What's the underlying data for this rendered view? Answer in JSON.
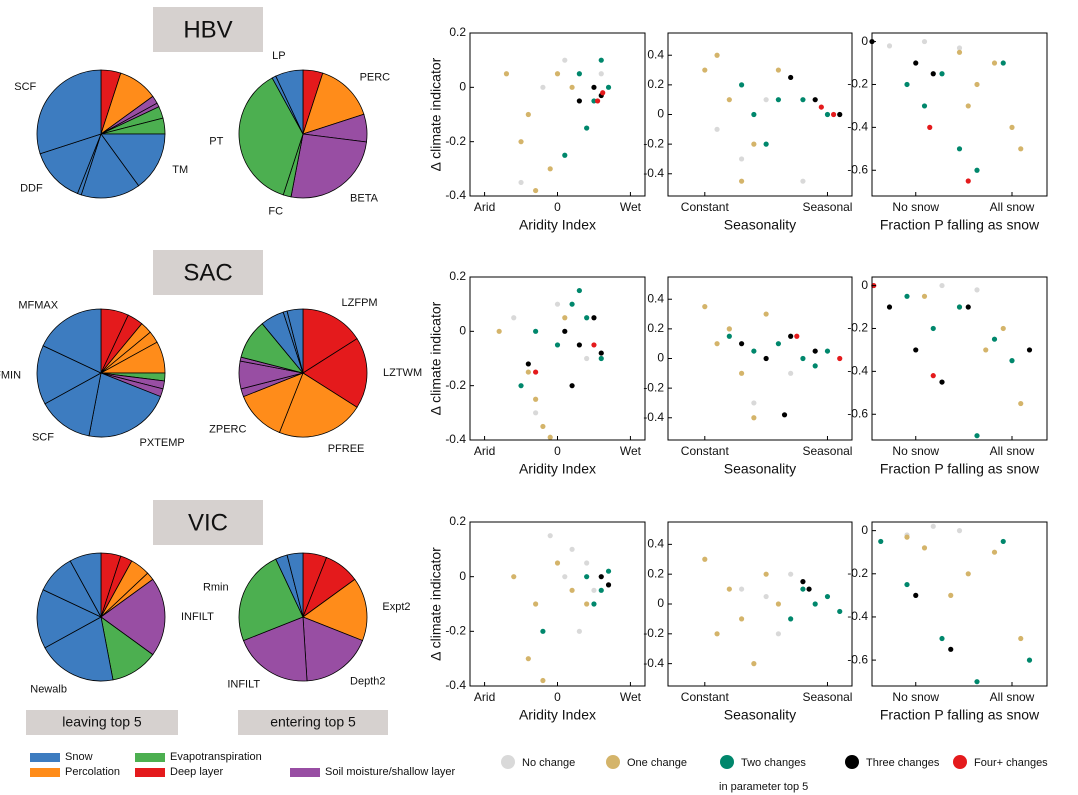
{
  "model_labels": [
    "HBV",
    "SAC",
    "VIC"
  ],
  "pie_captions": [
    "leaving top 5",
    "entering top 5"
  ],
  "pie_legend": [
    {
      "name": "Snow",
      "color": "#3d7cc0"
    },
    {
      "name": "Percolation",
      "color": "#ff8c1a"
    },
    {
      "name": "Evapotranspiration",
      "color": "#4caf50"
    },
    {
      "name": "Deep layer",
      "color": "#e41a1c"
    },
    {
      "name": "Soil moisture/shallow layer",
      "color": "#984ea3"
    }
  ],
  "scatter_legend": {
    "items": [
      {
        "name": "No change",
        "color": "#d9d9d9"
      },
      {
        "name": "One change",
        "color": "#d4b46a"
      },
      {
        "name": "Two changes",
        "color": "#00876c"
      },
      {
        "name": "Three changes",
        "color": "#000000"
      },
      {
        "name": "Four+ changes",
        "color": "#e41a1c"
      }
    ],
    "note": "in parameter top 5"
  },
  "chart_data": [
    {
      "type": "pie",
      "categories": [
        null,
        null,
        null,
        null,
        null,
        null,
        "TM",
        null,
        null,
        "DDF",
        "SCF"
      ],
      "values": [
        5,
        10,
        2,
        1,
        3,
        4,
        15,
        15,
        1,
        14,
        30
      ],
      "colors": [
        "#e41a1c",
        "#ff8c1a",
        "#984ea3",
        "#984ea3",
        "#4caf50",
        "#4caf50",
        "#3d7cc0",
        "#3d7cc0",
        "#3d7cc0",
        "#3d7cc0",
        "#3d7cc0"
      ]
    },
    {
      "type": "pie",
      "categories": [
        null,
        "PERC",
        null,
        "BETA",
        "FC",
        "PT",
        null,
        "LP"
      ],
      "values": [
        5,
        15,
        7,
        26,
        2,
        37,
        1,
        7
      ],
      "colors": [
        "#e41a1c",
        "#ff8c1a",
        "#984ea3",
        "#984ea3",
        "#4caf50",
        "#4caf50",
        "#3d7cc0",
        "#3d7cc0"
      ]
    },
    {
      "type": "scatter",
      "x_label": "Aridity Index",
      "y_label": "Δ climate indicator",
      "xlim": [
        -1.2,
        1.2
      ],
      "ylim": [
        -0.4,
        0.2
      ],
      "xticks": [
        {
          "value": -1,
          "label": "Arid"
        },
        0,
        {
          "value": 1,
          "label": "Wet"
        }
      ],
      "yticks": [
        -0.4,
        -0.2,
        0,
        0.2
      ],
      "series": [
        {
          "x": [
            -0.2,
            0.1,
            0.3,
            0.6,
            -0.5
          ],
          "y": [
            0.0,
            0.1,
            -0.05,
            0.05,
            -0.35
          ]
        },
        {
          "x": [
            -0.7,
            -0.4,
            -0.1,
            0.2,
            -0.3,
            -0.5,
            0.0
          ],
          "y": [
            0.05,
            -0.1,
            -0.3,
            0.0,
            -0.38,
            -0.2,
            0.05
          ]
        },
        {
          "x": [
            0.3,
            0.5,
            0.7,
            0.6,
            0.4,
            0.1
          ],
          "y": [
            0.05,
            -0.05,
            0.0,
            0.1,
            -0.15,
            -0.25
          ]
        },
        {
          "x": [
            0.3,
            0.5,
            0.6
          ],
          "y": [
            -0.05,
            0.0,
            -0.03
          ]
        },
        {
          "x": [
            0.55,
            0.62
          ],
          "y": [
            -0.05,
            -0.02
          ]
        }
      ]
    },
    {
      "type": "scatter",
      "x_label": "Seasonality",
      "xlim": [
        -0.3,
        1.2
      ],
      "ylim": [
        -0.55,
        0.55
      ],
      "xticks": [
        {
          "value": 0,
          "label": "Constant"
        },
        {
          "value": 1,
          "label": "Seasonal"
        }
      ],
      "yticks": [
        -0.4,
        -0.2,
        0,
        0.2,
        0.4
      ],
      "series": [
        {
          "x": [
            0.1,
            0.3,
            0.5,
            0.8
          ],
          "y": [
            -0.1,
            -0.3,
            0.1,
            -0.45
          ]
        },
        {
          "x": [
            0.0,
            0.2,
            0.4,
            0.3,
            0.6,
            0.1
          ],
          "y": [
            0.3,
            0.1,
            -0.2,
            -0.45,
            0.3,
            0.4
          ]
        },
        {
          "x": [
            0.3,
            0.4,
            0.6,
            0.8,
            1.0,
            0.5
          ],
          "y": [
            0.2,
            0.0,
            0.1,
            0.1,
            0.0,
            -0.2
          ]
        },
        {
          "x": [
            0.7,
            0.9,
            1.1
          ],
          "y": [
            0.25,
            0.1,
            0.0
          ]
        },
        {
          "x": [
            0.95,
            1.05
          ],
          "y": [
            0.05,
            0.0
          ]
        }
      ]
    },
    {
      "type": "scatter",
      "x_label": "Fraction P falling as snow",
      "xlim": [
        0,
        1
      ],
      "ylim": [
        -0.72,
        0.04
      ],
      "xticks": [
        {
          "value": 0.25,
          "label": "No snow"
        },
        {
          "value": 0.8,
          "label": "All snow"
        }
      ],
      "yticks": [
        -0.6,
        -0.4,
        -0.2,
        0
      ],
      "series": [
        {
          "x": [
            0.1,
            0.3,
            0.5
          ],
          "y": [
            -0.02,
            0,
            -0.03
          ]
        },
        {
          "x": [
            0.5,
            0.6,
            0.7,
            0.8,
            0.55,
            0.85
          ],
          "y": [
            -0.05,
            -0.2,
            -0.1,
            -0.4,
            -0.3,
            -0.5
          ]
        },
        {
          "x": [
            0.2,
            0.3,
            0.5,
            0.6,
            0.75,
            0.4
          ],
          "y": [
            -0.2,
            -0.3,
            -0.5,
            -0.6,
            -0.1,
            -0.15
          ]
        },
        {
          "x": [
            0,
            0.25,
            0.35
          ],
          "y": [
            0,
            -0.1,
            -0.15
          ]
        },
        {
          "x": [
            0.33,
            0.55
          ],
          "y": [
            -0.4,
            -0.65
          ]
        }
      ]
    },
    {
      "type": "pie",
      "categories": [
        null,
        null,
        null,
        null,
        null,
        null,
        null,
        null,
        "PXTEMP",
        "SCF",
        "MFMIN",
        "MFMAX"
      ],
      "values": [
        7,
        4,
        3,
        3,
        8,
        2,
        2,
        2,
        22,
        14,
        15,
        18
      ],
      "colors": [
        "#e41a1c",
        "#e41a1c",
        "#ff8c1a",
        "#ff8c1a",
        "#ff8c1a",
        "#4caf50",
        "#984ea3",
        "#984ea3",
        "#3d7cc0",
        "#3d7cc0",
        "#3d7cc0",
        "#3d7cc0"
      ]
    },
    {
      "type": "pie",
      "categories": [
        "LZFPM",
        "LZTWM",
        "PFREE",
        "ZPERC",
        null,
        null,
        null,
        null,
        null,
        null,
        null
      ],
      "values": [
        16,
        18,
        22,
        13,
        2,
        7,
        1,
        10,
        6,
        1,
        4
      ],
      "colors": [
        "#e41a1c",
        "#e41a1c",
        "#ff8c1a",
        "#ff8c1a",
        "#984ea3",
        "#984ea3",
        "#984ea3",
        "#4caf50",
        "#3d7cc0",
        "#3d7cc0",
        "#3d7cc0"
      ]
    },
    {
      "type": "scatter",
      "x_label": "Aridity Index",
      "y_label": "Δ climate indicator",
      "xlim": [
        -1.2,
        1.2
      ],
      "ylim": [
        -0.4,
        0.2
      ],
      "xticks": [
        {
          "value": -1,
          "label": "Arid"
        },
        0,
        {
          "value": 1,
          "label": "Wet"
        }
      ],
      "yticks": [
        -0.4,
        -0.2,
        0,
        0.2
      ],
      "series": [
        {
          "x": [
            -0.6,
            0.0,
            0.4,
            -0.3
          ],
          "y": [
            0.05,
            0.1,
            -0.1,
            -0.3
          ]
        },
        {
          "x": [
            -0.8,
            -0.4,
            -0.2,
            0.1,
            -0.3,
            -0.1
          ],
          "y": [
            0.0,
            -0.15,
            -0.35,
            0.05,
            -0.25,
            -0.39
          ]
        },
        {
          "x": [
            -0.3,
            0.0,
            0.2,
            0.4,
            0.6,
            -0.5,
            0.3
          ],
          "y": [
            0.0,
            -0.05,
            0.1,
            0.05,
            -0.1,
            -0.2,
            0.15
          ]
        },
        {
          "x": [
            0.1,
            0.3,
            0.5,
            0.6,
            -0.4,
            0.2
          ],
          "y": [
            0.0,
            -0.05,
            0.05,
            -0.08,
            -0.12,
            -0.2
          ]
        },
        {
          "x": [
            0.5,
            -0.3
          ],
          "y": [
            -0.05,
            -0.15
          ]
        }
      ]
    },
    {
      "type": "scatter",
      "x_label": "Seasonality",
      "xlim": [
        -0.3,
        1.2
      ],
      "ylim": [
        -0.55,
        0.55
      ],
      "xticks": [
        {
          "value": 0,
          "label": "Constant"
        },
        {
          "value": 1,
          "label": "Seasonal"
        }
      ],
      "yticks": [
        -0.4,
        -0.2,
        0,
        0.2,
        0.4
      ],
      "series": [
        {
          "x": [
            0.2,
            0.4,
            0.7
          ],
          "y": [
            0.2,
            -0.3,
            -0.1
          ]
        },
        {
          "x": [
            0.0,
            0.2,
            0.3,
            0.4,
            0.5,
            0.1
          ],
          "y": [
            0.35,
            0.2,
            -0.1,
            -0.4,
            0.3,
            0.1
          ]
        },
        {
          "x": [
            0.2,
            0.4,
            0.6,
            0.8,
            1.0,
            0.9
          ],
          "y": [
            0.15,
            0.05,
            0.1,
            0.0,
            0.05,
            -0.05
          ]
        },
        {
          "x": [
            0.3,
            0.5,
            0.7,
            0.9,
            0.65
          ],
          "y": [
            0.1,
            0.0,
            0.15,
            0.05,
            -0.38
          ]
        },
        {
          "x": [
            0.75,
            1.1
          ],
          "y": [
            0.15,
            0.0
          ]
        }
      ]
    },
    {
      "type": "scatter",
      "x_label": "Fraction P falling as snow",
      "xlim": [
        0,
        1
      ],
      "ylim": [
        -0.72,
        0.04
      ],
      "xticks": [
        {
          "value": 0.25,
          "label": "No snow"
        },
        {
          "value": 0.8,
          "label": "All snow"
        }
      ],
      "yticks": [
        -0.6,
        -0.4,
        -0.2,
        0
      ],
      "series": [
        {
          "x": [
            0.4,
            0.6
          ],
          "y": [
            0.0,
            -0.02
          ]
        },
        {
          "x": [
            0.3,
            0.5,
            0.65,
            0.75,
            0.85
          ],
          "y": [
            -0.05,
            -0.1,
            -0.3,
            -0.2,
            -0.55
          ]
        },
        {
          "x": [
            0.2,
            0.35,
            0.5,
            0.6,
            0.8,
            0.7
          ],
          "y": [
            -0.05,
            -0.2,
            -0.1,
            -0.7,
            -0.35,
            -0.25
          ]
        },
        {
          "x": [
            0.1,
            0.25,
            0.4,
            0.55,
            0.9
          ],
          "y": [
            -0.1,
            -0.3,
            -0.45,
            -0.1,
            -0.3
          ]
        },
        {
          "x": [
            0.01,
            0.35
          ],
          "y": [
            0,
            -0.42
          ]
        }
      ]
    },
    {
      "type": "pie",
      "categories": [
        null,
        null,
        null,
        null,
        "INFILT",
        null,
        "Newalb",
        null,
        null,
        null
      ],
      "values": [
        5,
        3,
        5,
        2,
        20,
        12,
        20,
        15,
        10,
        8
      ],
      "colors": [
        "#e41a1c",
        "#e41a1c",
        "#ff8c1a",
        "#ff8c1a",
        "#984ea3",
        "#4caf50",
        "#3d7cc0",
        "#3d7cc0",
        "#3d7cc0",
        "#3d7cc0"
      ]
    },
    {
      "type": "pie",
      "categories": [
        null,
        null,
        "Expt2",
        "Depth2",
        "INFILT",
        "Rmin",
        null,
        null
      ],
      "values": [
        6,
        9,
        16,
        18,
        20,
        24,
        3,
        4
      ],
      "colors": [
        "#e41a1c",
        "#e41a1c",
        "#ff8c1a",
        "#984ea3",
        "#984ea3",
        "#4caf50",
        "#3d7cc0",
        "#3d7cc0"
      ]
    },
    {
      "type": "scatter",
      "x_label": "Aridity Index",
      "y_label": "Δ climate indicator",
      "xlim": [
        -1.2,
        1.2
      ],
      "ylim": [
        -0.4,
        0.2
      ],
      "xticks": [
        {
          "value": -1,
          "label": "Arid"
        },
        0,
        {
          "value": 1,
          "label": "Wet"
        }
      ],
      "yticks": [
        -0.4,
        -0.2,
        0,
        0.2
      ],
      "series": [
        {
          "x": [
            0.2,
            0.4,
            0.5,
            0.1,
            0.3,
            -0.1
          ],
          "y": [
            0.1,
            0.05,
            -0.05,
            0.0,
            -0.2,
            0.15
          ]
        },
        {
          "x": [
            -0.6,
            -0.3,
            0.0,
            0.2,
            -0.4,
            -0.2,
            0.4
          ],
          "y": [
            0.0,
            -0.1,
            0.05,
            -0.05,
            -0.3,
            -0.38,
            -0.1
          ]
        },
        {
          "x": [
            0.4,
            0.6,
            0.7,
            -0.2,
            0.5
          ],
          "y": [
            0.0,
            -0.05,
            0.02,
            -0.2,
            -0.1
          ]
        },
        {
          "x": [
            0.6,
            0.7
          ],
          "y": [
            0.0,
            -0.03
          ]
        },
        {
          "x": [],
          "y": []
        }
      ]
    },
    {
      "type": "scatter",
      "x_label": "Seasonality",
      "xlim": [
        -0.3,
        1.2
      ],
      "ylim": [
        -0.55,
        0.55
      ],
      "xticks": [
        {
          "value": 0,
          "label": "Constant"
        },
        {
          "value": 1,
          "label": "Seasonal"
        }
      ],
      "yticks": [
        -0.4,
        -0.2,
        0,
        0.2,
        0.4
      ],
      "series": [
        {
          "x": [
            0.3,
            0.5,
            0.6,
            0.7
          ],
          "y": [
            0.1,
            0.05,
            -0.2,
            0.2
          ]
        },
        {
          "x": [
            0.0,
            0.2,
            0.3,
            0.4,
            0.5,
            0.6,
            0.1
          ],
          "y": [
            0.3,
            0.1,
            -0.1,
            -0.4,
            0.2,
            0.0,
            -0.2
          ]
        },
        {
          "x": [
            0.8,
            0.9,
            1.0,
            1.1,
            0.7
          ],
          "y": [
            0.1,
            0.0,
            0.05,
            -0.05,
            -0.1
          ]
        },
        {
          "x": [
            0.8,
            0.85
          ],
          "y": [
            0.15,
            0.1
          ]
        },
        {
          "x": [],
          "y": []
        }
      ]
    },
    {
      "type": "scatter",
      "x_label": "Fraction P falling as snow",
      "xlim": [
        0,
        1
      ],
      "ylim": [
        -0.72,
        0.04
      ],
      "xticks": [
        {
          "value": 0.25,
          "label": "No snow"
        },
        {
          "value": 0.8,
          "label": "All snow"
        }
      ],
      "yticks": [
        -0.6,
        -0.4,
        -0.2,
        0
      ],
      "series": [
        {
          "x": [
            0.35,
            0.5,
            0.2
          ],
          "y": [
            0.02,
            0.0,
            -0.02
          ]
        },
        {
          "x": [
            0.2,
            0.3,
            0.55,
            0.7,
            0.85,
            0.45
          ],
          "y": [
            -0.03,
            -0.08,
            -0.2,
            -0.1,
            -0.5,
            -0.3
          ]
        },
        {
          "x": [
            0.05,
            0.2,
            0.4,
            0.6,
            0.75,
            0.9
          ],
          "y": [
            -0.05,
            -0.25,
            -0.5,
            -0.7,
            -0.05,
            -0.6
          ]
        },
        {
          "x": [
            0.25,
            0.45
          ],
          "y": [
            -0.3,
            -0.55
          ]
        },
        {
          "x": [],
          "y": []
        }
      ]
    }
  ]
}
